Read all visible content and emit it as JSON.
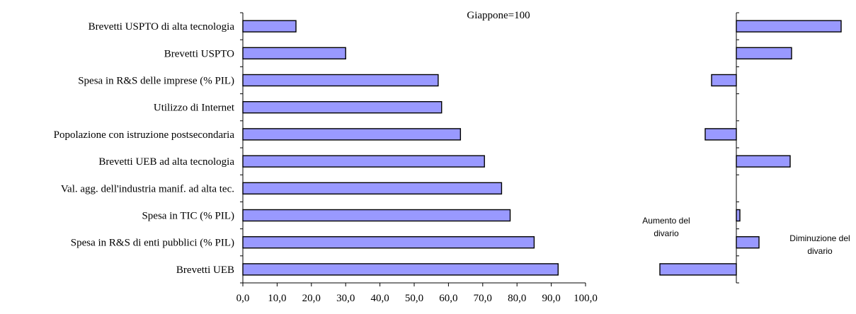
{
  "chart_data": [
    {
      "type": "bar",
      "orientation": "horizontal",
      "annotation": "Giappone=100",
      "categories": [
        "Brevetti USPTO di alta tecnologia",
        "Brevetti USPTO",
        "Spesa in R&S delle imprese (% PIL)",
        "Utilizzo di Internet",
        "Popolazione con istruzione postsecondaria",
        "Brevetti UEB ad alta tecnologia",
        "Val. agg. dell'industria manif. ad alta tec.",
        "Spesa in TIC (% PIL)",
        "Spesa in R&S di enti pubblici (% PIL)",
        "Brevetti UEB"
      ],
      "values": [
        15.5,
        30.0,
        57.0,
        58.0,
        63.5,
        70.5,
        75.5,
        78.0,
        85.0,
        92.0
      ],
      "xlim": [
        0,
        100
      ],
      "x_ticks": [
        "0,0",
        "10,0",
        "20,0",
        "30,0",
        "40,0",
        "50,0",
        "60,0",
        "70,0",
        "80,0",
        "90,0",
        "100,0"
      ],
      "bar_color": "#9999ff"
    },
    {
      "type": "bar",
      "orientation": "horizontal",
      "annotations": {
        "left": "Aumento del divario",
        "right": "Diminuzione del divario"
      },
      "categories": [
        "Brevetti USPTO di alta tecnologia",
        "Brevetti USPTO",
        "Spesa in R&S delle imprese (% PIL)",
        "Utilizzo di Internet",
        "Popolazione con istruzione postsecondaria",
        "Brevetti UEB ad alta tecnologia",
        "Val. agg. dell'industria manif. ad alta tec.",
        "Spesa in TIC (% PIL)",
        "Spesa in R&S di enti pubblici (% PIL)",
        "Brevetti UEB"
      ],
      "values": [
        14.8,
        7.8,
        -3.5,
        0,
        -4.4,
        7.6,
        0,
        0.5,
        3.2,
        -10.8
      ],
      "bar_color": "#9999ff"
    }
  ]
}
